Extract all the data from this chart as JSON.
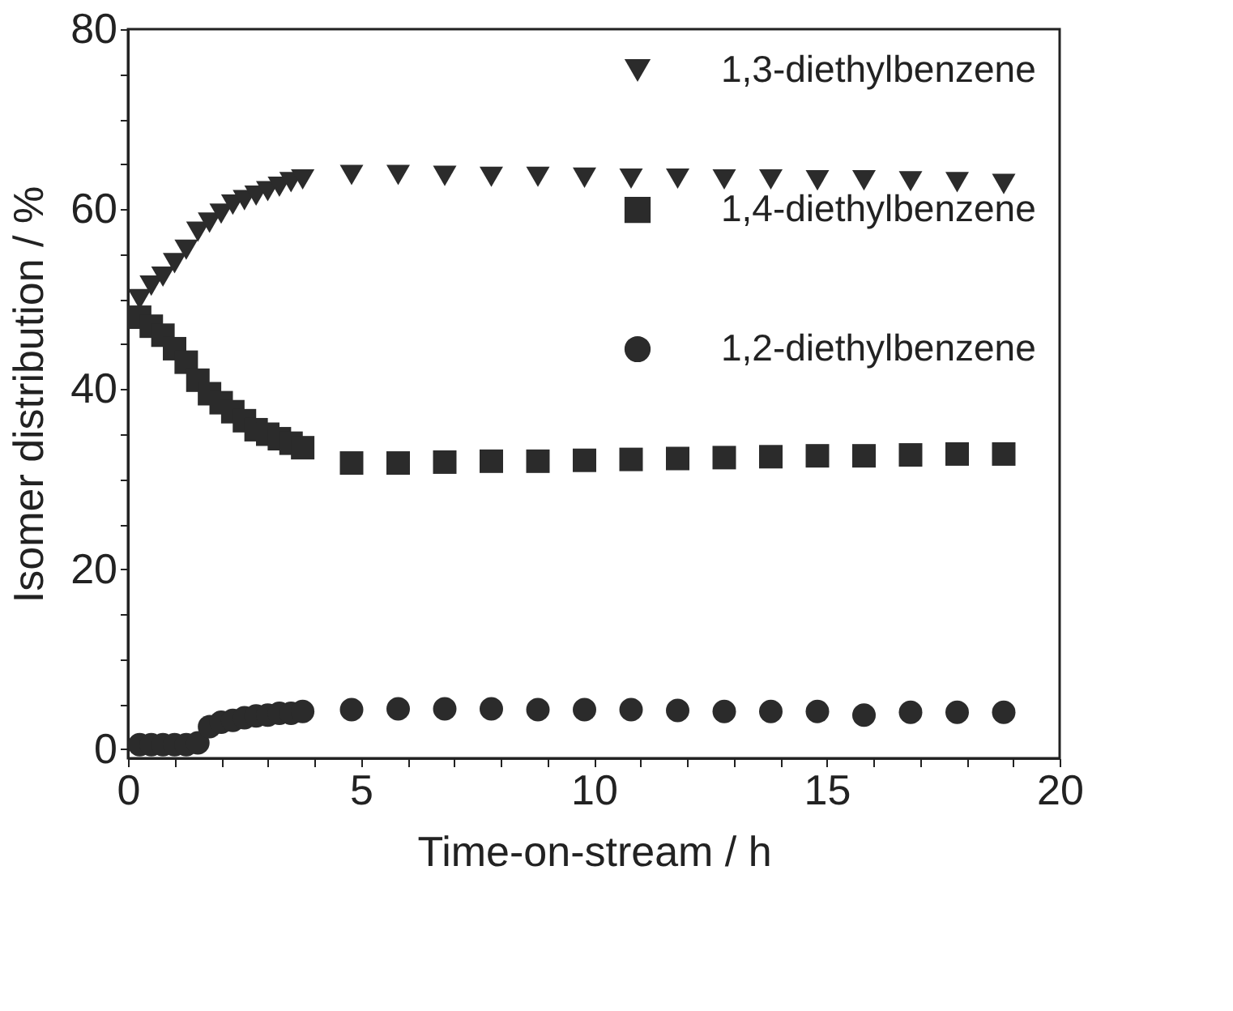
{
  "chart_data": {
    "type": "scatter",
    "xlabel": "Time-on-stream  / h",
    "ylabel": "Isomer distribution  / %",
    "xlim": [
      0,
      20
    ],
    "ylim": [
      -1,
      80
    ],
    "xticks": [
      0,
      {
        "value": 1,
        "label": null
      },
      {
        "value": 2,
        "label": null
      },
      {
        "value": 3,
        "label": null
      },
      {
        "value": 4,
        "label": null
      },
      5,
      {
        "value": 6,
        "label": null
      },
      {
        "value": 7,
        "label": null
      },
      {
        "value": 8,
        "label": null
      },
      {
        "value": 9,
        "label": null
      },
      10,
      {
        "value": 11,
        "label": null
      },
      {
        "value": 12,
        "label": null
      },
      {
        "value": 13,
        "label": null
      },
      {
        "value": 14,
        "label": null
      },
      15,
      {
        "value": 16,
        "label": null
      },
      {
        "value": 17,
        "label": null
      },
      {
        "value": 18,
        "label": null
      },
      {
        "value": 19,
        "label": null
      },
      20
    ],
    "yticks": [
      0,
      {
        "value": 5,
        "label": null
      },
      {
        "value": 10,
        "label": null
      },
      {
        "value": 15,
        "label": null
      },
      20,
      {
        "value": 25,
        "label": null
      },
      {
        "value": 30,
        "label": null
      },
      {
        "value": 35,
        "label": null
      },
      40,
      {
        "value": 45,
        "label": null
      },
      {
        "value": 50,
        "label": null
      },
      {
        "value": 55,
        "label": null
      },
      60,
      {
        "value": 65,
        "label": null
      },
      {
        "value": 70,
        "label": null
      },
      {
        "value": 75,
        "label": null
      },
      80
    ],
    "grid": false,
    "legend": "top right",
    "x": [
      0.25,
      0.5,
      0.75,
      1.0,
      1.25,
      1.5,
      1.75,
      2.0,
      2.25,
      2.5,
      2.75,
      3.0,
      3.25,
      3.5,
      3.75,
      4.8,
      5.8,
      6.8,
      7.8,
      8.8,
      9.8,
      10.8,
      11.8,
      12.8,
      13.8,
      14.8,
      15.8,
      16.8,
      17.8,
      18.8
    ],
    "series": [
      {
        "name": "1,3-diethylbenzene",
        "color": "#2b2b2b",
        "marker": "triangle",
        "values": [
          50,
          51.5,
          52.5,
          54,
          55.5,
          57.5,
          58.5,
          59.5,
          60.5,
          61,
          61.5,
          62,
          62.5,
          63,
          63.3,
          63.8,
          63.8,
          63.7,
          63.6,
          63.6,
          63.5,
          63.4,
          63.4,
          63.3,
          63.3,
          63.2,
          63.2,
          63.1,
          63,
          62.8
        ]
      },
      {
        "name": "1,4-diethylbenzene",
        "color": "#2b2b2b",
        "marker": "square",
        "values": [
          48,
          47,
          46,
          44.5,
          43,
          41,
          39.5,
          38.5,
          37.5,
          36.5,
          35.5,
          35,
          34.5,
          34,
          33.5,
          31.8,
          31.8,
          31.9,
          32,
          32,
          32.1,
          32.2,
          32.3,
          32.4,
          32.5,
          32.6,
          32.6,
          32.7,
          32.8,
          32.8
        ]
      },
      {
        "name": "1,2-diethylbenzene",
        "color": "#2b2b2b",
        "marker": "circle",
        "values": [
          0.5,
          0.5,
          0.5,
          0.5,
          0.5,
          0.7,
          2.5,
          3,
          3.2,
          3.5,
          3.7,
          3.8,
          4,
          4,
          4.2,
          4.4,
          4.5,
          4.5,
          4.5,
          4.4,
          4.4,
          4.4,
          4.3,
          4.2,
          4.2,
          4.2,
          3.8,
          4.1,
          4.1,
          4.1
        ]
      }
    ]
  }
}
